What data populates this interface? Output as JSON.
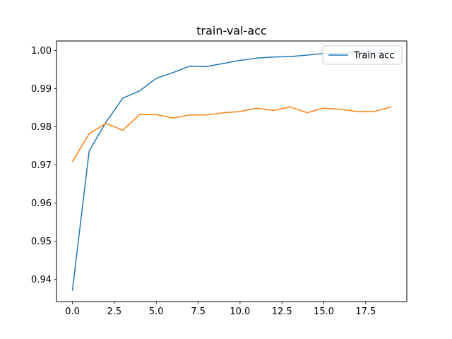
{
  "chart_data": {
    "type": "line",
    "title": "train-val-acc",
    "xlabel": "",
    "ylabel": "",
    "xlim": [
      -0.95,
      19.95
    ],
    "ylim": [
      0.9342,
      1.0025
    ],
    "x_ticks": [
      0,
      2.5,
      5,
      7.5,
      10,
      12.5,
      15,
      17.5
    ],
    "x_tick_labels": [
      "0.0",
      "2.5",
      "5.0",
      "7.5",
      "10.0",
      "12.5",
      "15.0",
      "17.5"
    ],
    "y_ticks": [
      0.94,
      0.95,
      0.96,
      0.97,
      0.98,
      0.99,
      1.0
    ],
    "y_tick_labels": [
      "0.94",
      "0.95",
      "0.96",
      "0.97",
      "0.98",
      "0.99",
      "1.00"
    ],
    "grid": false,
    "legend_position": "top-right",
    "x": [
      0,
      1,
      2,
      3,
      4,
      5,
      6,
      7,
      8,
      9,
      10,
      11,
      12,
      13,
      14,
      15,
      16,
      17,
      18,
      19
    ],
    "series": [
      {
        "name": "Train acc",
        "color": "#1f77b4",
        "show_in_legend": true,
        "values": [
          0.9372,
          0.9737,
          0.9812,
          0.9875,
          0.9894,
          0.9927,
          0.9942,
          0.9959,
          0.9958,
          0.9966,
          0.9974,
          0.998,
          0.9983,
          0.9984,
          0.9988,
          0.9992,
          0.9993,
          0.9994,
          0.9994,
          0.9995
        ]
      },
      {
        "name": "",
        "color": "#ff7f0e",
        "show_in_legend": false,
        "values": [
          0.9709,
          0.9782,
          0.9809,
          0.9791,
          0.9832,
          0.9832,
          0.9823,
          0.9831,
          0.9831,
          0.9837,
          0.984,
          0.9849,
          0.9843,
          0.9852,
          0.9837,
          0.9849,
          0.9846,
          0.984,
          0.984,
          0.9852
        ]
      }
    ]
  }
}
